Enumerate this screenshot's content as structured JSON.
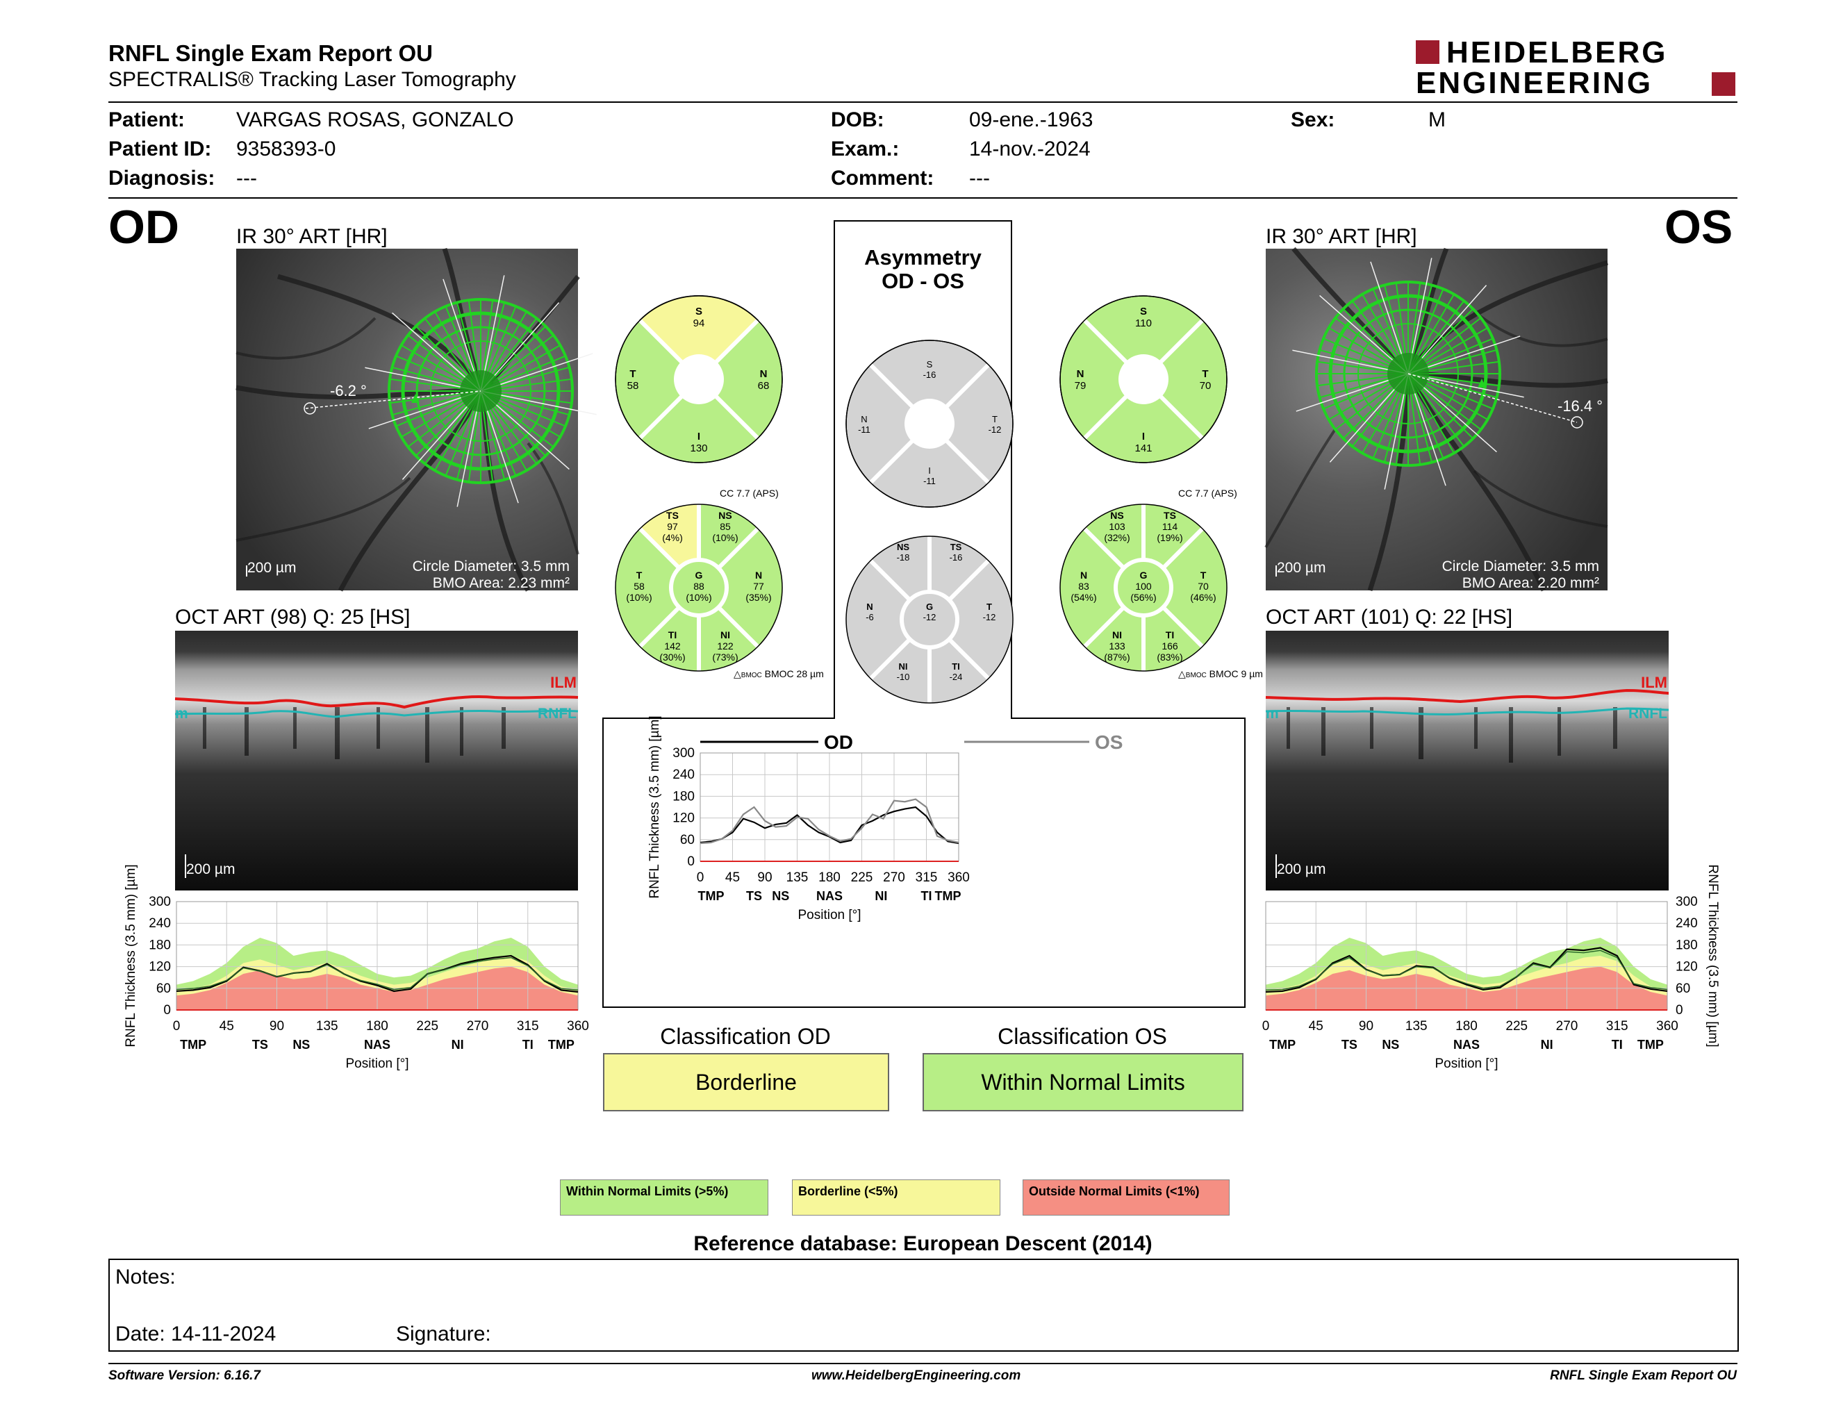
{
  "report": {
    "title": "RNFL Single Exam Report OU",
    "subtitle": "SPECTRALIS® Tracking Laser Tomography",
    "logo": [
      "HEIDELBERG",
      "ENGINEERING"
    ]
  },
  "patient": {
    "patient_label": "Patient:",
    "patient_value": "VARGAS ROSAS, GONZALO",
    "id_label": "Patient ID:",
    "id_value": "9358393-0",
    "diagnosis_label": "Diagnosis:",
    "diagnosis_value": "---",
    "dob_label": "DOB:",
    "dob_value": "09-ene.-1963",
    "exam_label": "Exam.:",
    "exam_value": "14-nov.-2024",
    "comment_label": "Comment:",
    "comment_value": "---",
    "sex_label": "Sex:",
    "sex_value": "M"
  },
  "od": {
    "eye": "OD",
    "ir_label": "IR 30° ART [HR]",
    "angle": "-6.2 °",
    "scale": "200 µm",
    "circle": "Circle Diameter: 3.5 mm",
    "bmo": "BMO Area: 2.23 mm²",
    "oct_label": "OCT ART (98) Q: 25 [HS]",
    "oct_scale": "200 µm",
    "ilm": "ILM",
    "rnfl": "RNFL",
    "rnfl_left": "m"
  },
  "os": {
    "eye": "OS",
    "ir_label": "IR 30° ART [HR]",
    "angle": "-16.4 °",
    "scale": "200 µm",
    "circle": "Circle Diameter: 3.5 mm",
    "bmo": "BMO Area: 2.20 mm²",
    "oct_label": "OCT ART (101) Q: 22 [HS]",
    "oct_scale": "200 µm",
    "ilm": "ILM",
    "rnfl": "RNFL",
    "rnfl_left": "m"
  },
  "sectors": {
    "od_quad": {
      "S": "94",
      "T": "58",
      "N": "68",
      "I": "130"
    },
    "od_six": {
      "cc": "CC 7.7 (APS)",
      "TS": [
        "TS",
        "97",
        "(4%)"
      ],
      "NS": [
        "NS",
        "85",
        "(10%)"
      ],
      "T": [
        "T",
        "58",
        "(10%)"
      ],
      "G": [
        "G",
        "88",
        "(10%)"
      ],
      "N": [
        "N",
        "77",
        "(35%)"
      ],
      "TI": [
        "TI",
        "142",
        "(30%)"
      ],
      "NI": [
        "NI",
        "122",
        "(73%)"
      ],
      "bmoc": "BMOC 28 µm"
    },
    "asym_title": [
      "Asymmetry",
      "OD - OS"
    ],
    "asym_quad": {
      "S": "-16",
      "N": "-11",
      "T": "-12",
      "I": "-11"
    },
    "asym_six": {
      "NS": [
        "NS",
        "-18"
      ],
      "TS": [
        "TS",
        "-16"
      ],
      "N": [
        "N",
        "-6"
      ],
      "G": [
        "G",
        "-12"
      ],
      "T": [
        "T",
        "-12"
      ],
      "NI": [
        "NI",
        "-10"
      ],
      "TI": [
        "TI",
        "-24"
      ]
    },
    "os_quad": {
      "S": "110",
      "N": "79",
      "T": "70",
      "I": "141"
    },
    "os_six": {
      "cc": "CC 7.7 (APS)",
      "NS": [
        "NS",
        "103",
        "(32%)"
      ],
      "TS": [
        "TS",
        "114",
        "(19%)"
      ],
      "N": [
        "N",
        "83",
        "(54%)"
      ],
      "G": [
        "G",
        "100",
        "(56%)"
      ],
      "T": [
        "T",
        "70",
        "(46%)"
      ],
      "NI": [
        "NI",
        "133",
        "(87%)"
      ],
      "TI": [
        "TI",
        "166",
        "(83%)"
      ],
      "bmoc": "BMOC 9 µm"
    }
  },
  "colors": {
    "green": "#b7ee86",
    "yellow": "#f7f79a",
    "red": "#f58f83",
    "grey": "#d3d3d3",
    "scan_green": "#22d322"
  },
  "chart_data": [
    {
      "type": "line",
      "legend": [
        "OD",
        "OS"
      ],
      "xlabel": "Position [°]",
      "ylabel": "RNFL Thickness (3.5 mm) [µm]",
      "xlim": [
        0,
        360
      ],
      "ylim": [
        0,
        300
      ],
      "xticks": [
        "0",
        "45",
        "90",
        "135",
        "180",
        "225",
        "270",
        "315",
        "360"
      ],
      "yticks": [
        "0",
        "60",
        "120",
        "180",
        "240",
        "300"
      ],
      "sector_labels": [
        "TMP",
        "TS",
        "NS",
        "NAS",
        "NI",
        "TI",
        "TMP"
      ],
      "x": [
        0,
        15,
        30,
        45,
        60,
        75,
        90,
        105,
        120,
        135,
        150,
        165,
        180,
        195,
        210,
        225,
        240,
        255,
        270,
        285,
        300,
        315,
        330,
        345,
        360
      ],
      "series": [
        {
          "name": "OD",
          "values": [
            52,
            55,
            62,
            80,
            118,
            108,
            92,
            102,
            106,
            128,
            100,
            80,
            68,
            52,
            58,
            100,
            112,
            128,
            138,
            145,
            150,
            125,
            80,
            55,
            50
          ]
        },
        {
          "name": "OS",
          "values": [
            50,
            52,
            62,
            85,
            130,
            150,
            112,
            95,
            98,
            122,
            118,
            88,
            70,
            56,
            62,
            92,
            130,
            118,
            168,
            165,
            172,
            150,
            70,
            58,
            52
          ]
        }
      ]
    },
    {
      "type": "line",
      "xlabel": "Position [°]",
      "ylabel": "RNFL Thickness (3.5 mm) [µm]",
      "xlim": [
        0,
        360
      ],
      "ylim": [
        0,
        300
      ],
      "xticks": [
        "0",
        "45",
        "90",
        "135",
        "180",
        "225",
        "270",
        "315",
        "360"
      ],
      "yticks": [
        "0",
        "60",
        "120",
        "180",
        "240",
        "300"
      ],
      "sector_labels": [
        "TMP",
        "TS",
        "NS",
        "NAS",
        "NI",
        "TI",
        "TMP"
      ],
      "x": [
        0,
        15,
        30,
        45,
        60,
        75,
        90,
        105,
        120,
        135,
        150,
        165,
        180,
        195,
        210,
        225,
        240,
        255,
        270,
        285,
        300,
        315,
        330,
        345,
        360
      ],
      "series": [
        {
          "name": "OD",
          "values": [
            52,
            55,
            62,
            80,
            118,
            108,
            92,
            102,
            106,
            128,
            100,
            80,
            68,
            52,
            58,
            100,
            112,
            128,
            138,
            145,
            150,
            125,
            80,
            55,
            50
          ]
        }
      ],
      "bands": {
        "green_top": [
          70,
          80,
          100,
          130,
          175,
          200,
          185,
          150,
          160,
          165,
          150,
          125,
          100,
          90,
          95,
          115,
          140,
          160,
          170,
          190,
          200,
          175,
          120,
          85,
          70
        ],
        "yellow_top": [
          55,
          60,
          70,
          95,
          130,
          140,
          125,
          110,
          120,
          130,
          115,
          95,
          80,
          70,
          75,
          90,
          105,
          120,
          130,
          145,
          150,
          135,
          95,
          65,
          55
        ],
        "red_top": [
          40,
          45,
          55,
          75,
          100,
          110,
          95,
          85,
          90,
          100,
          90,
          70,
          60,
          50,
          55,
          70,
          85,
          95,
          105,
          115,
          120,
          105,
          70,
          50,
          40
        ]
      }
    },
    {
      "type": "line",
      "xlabel": "Position [°]",
      "ylabel": "RNFL Thickness (3.5 mm) [µm]",
      "xlim": [
        0,
        360
      ],
      "ylim": [
        0,
        300
      ],
      "xticks": [
        "0",
        "45",
        "90",
        "135",
        "180",
        "225",
        "270",
        "315",
        "360"
      ],
      "yticks": [
        "0",
        "60",
        "120",
        "180",
        "240",
        "300"
      ],
      "sector_labels": [
        "TMP",
        "TS",
        "NS",
        "NAS",
        "NI",
        "TI",
        "TMP"
      ],
      "x": [
        0,
        15,
        30,
        45,
        60,
        75,
        90,
        105,
        120,
        135,
        150,
        165,
        180,
        195,
        210,
        225,
        240,
        255,
        270,
        285,
        300,
        315,
        330,
        345,
        360
      ],
      "series": [
        {
          "name": "OS",
          "values": [
            50,
            52,
            62,
            85,
            130,
            150,
            112,
            95,
            98,
            122,
            118,
            88,
            70,
            56,
            62,
            92,
            130,
            118,
            168,
            165,
            172,
            150,
            70,
            58,
            52
          ]
        }
      ],
      "bands": {
        "green_top": [
          70,
          80,
          100,
          130,
          175,
          200,
          185,
          150,
          160,
          165,
          150,
          125,
          100,
          90,
          95,
          115,
          140,
          160,
          170,
          190,
          200,
          175,
          120,
          85,
          70
        ],
        "yellow_top": [
          55,
          60,
          70,
          95,
          130,
          140,
          125,
          110,
          120,
          130,
          115,
          95,
          80,
          70,
          75,
          90,
          105,
          120,
          130,
          145,
          150,
          135,
          95,
          65,
          55
        ],
        "red_top": [
          40,
          45,
          55,
          75,
          100,
          110,
          95,
          85,
          90,
          100,
          90,
          70,
          60,
          50,
          55,
          70,
          85,
          95,
          105,
          115,
          120,
          105,
          70,
          50,
          40
        ]
      }
    }
  ],
  "classification": {
    "od_title": "Classification OD",
    "od_value": "Borderline",
    "os_title": "Classification OS",
    "os_value": "Within Normal Limits"
  },
  "legend": {
    "wnl": "Within Normal Limits (>5%)",
    "bl": "Borderline (<5%)",
    "onl": "Outside Normal Limits (<1%)"
  },
  "reference": "Reference database: European Descent (2014)",
  "notes": {
    "notes_label": "Notes:",
    "date_label": "Date: 14-11-2024",
    "signature_label": "Signature:"
  },
  "footer": {
    "version": "Software Version: 6.16.7",
    "url": "www.HeidelbergEngineering.com",
    "name": "RNFL Single Exam Report OU"
  }
}
